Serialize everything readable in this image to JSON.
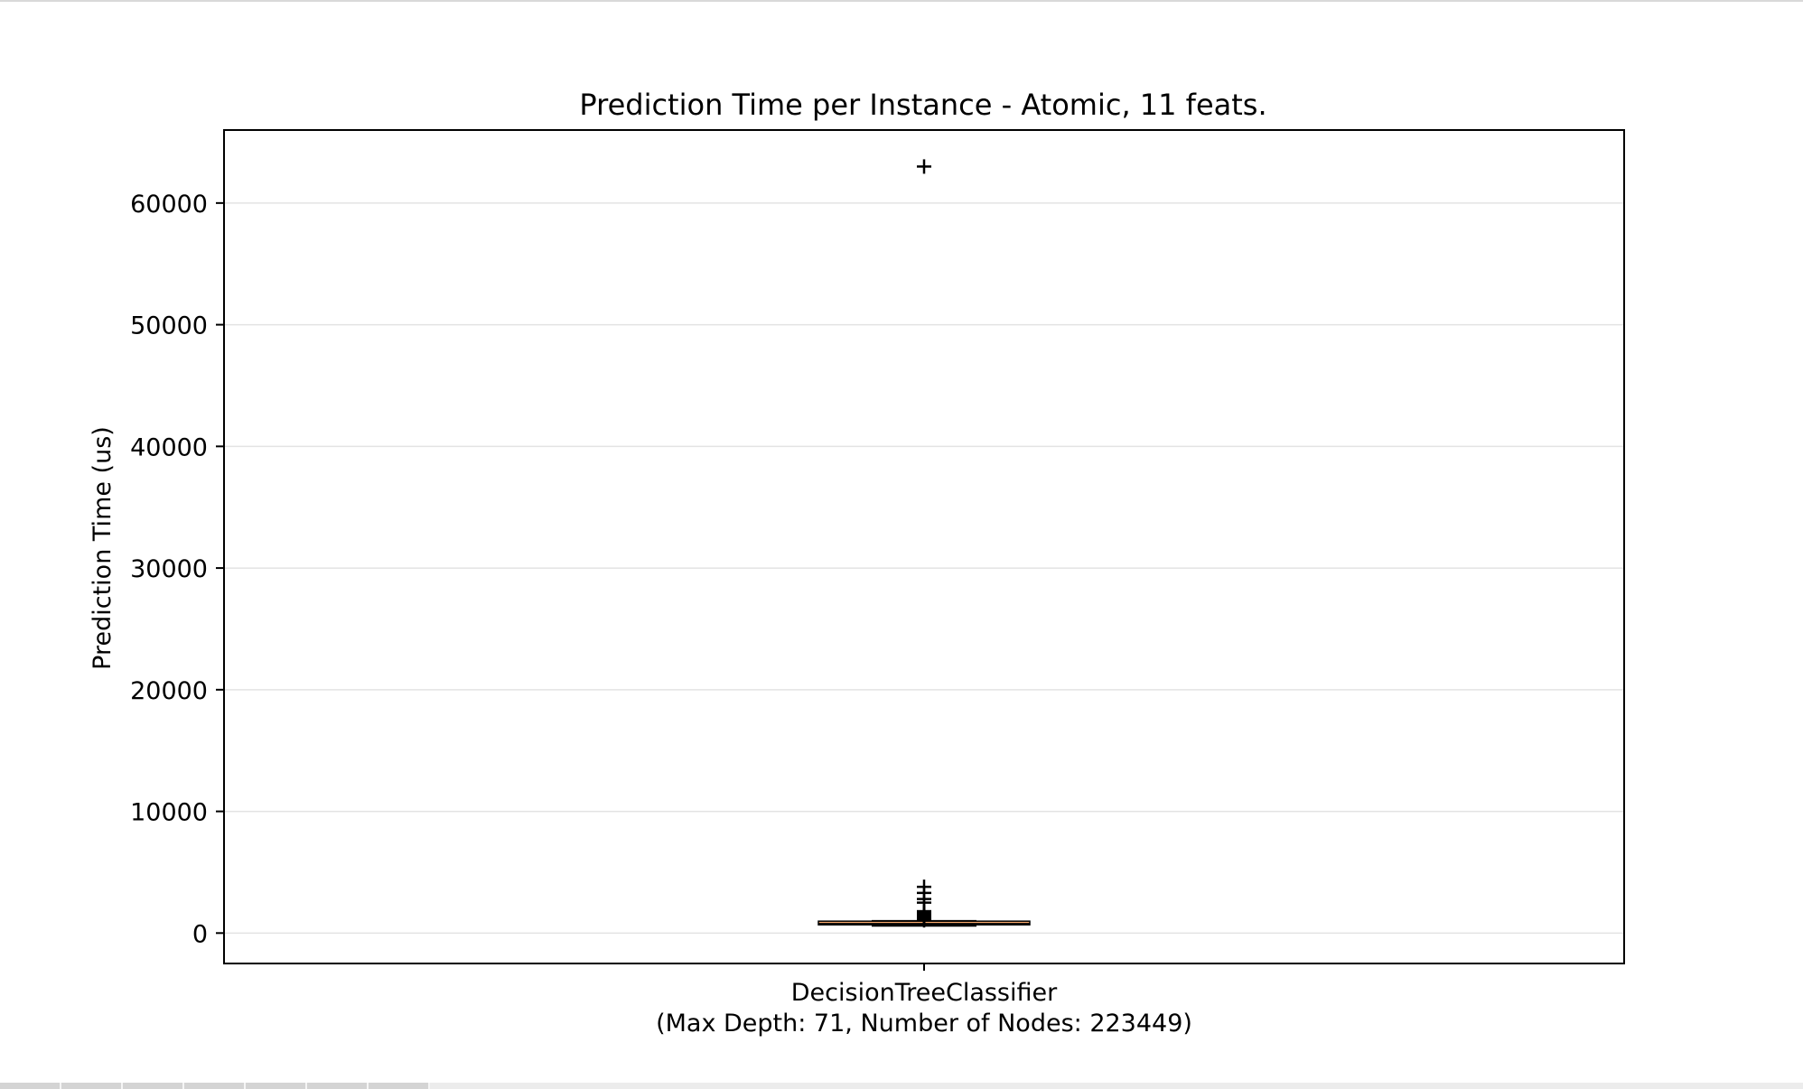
{
  "chart_data": {
    "type": "box",
    "title": "Prediction Time per Instance - Atomic, 11 feats.",
    "ylabel": "Prediction Time (us)",
    "xlabel": "",
    "ylim": [
      -2500,
      66000
    ],
    "yticks": [
      0,
      10000,
      20000,
      30000,
      40000,
      50000,
      60000
    ],
    "ytick_labels": [
      "0",
      "10000",
      "20000",
      "30000",
      "40000",
      "50000",
      "60000"
    ],
    "grid": "y",
    "categories": [
      "DecisionTreeClassifier\n(Max Depth: 71, Number of Nodes: 223449)"
    ],
    "category_lines": [
      "DecisionTreeClassifier",
      "(Max Depth: 71, Number of Nodes: 223449)"
    ],
    "boxes": [
      {
        "name": "DecisionTreeClassifier",
        "whisker_low": 600,
        "q1": 680,
        "median": 760,
        "q3": 880,
        "whisker_high": 1000,
        "outliers": [
          1050,
          1100,
          1150,
          1200,
          1250,
          1300,
          1350,
          1400,
          1450,
          1500,
          1550,
          1600,
          1650,
          1700,
          1800,
          2500,
          2800,
          3300,
          3800,
          63000
        ]
      }
    ],
    "colors": {
      "box_fill": "#f4a66a",
      "box_edge": "#000000",
      "median": "#000000",
      "grid": "#e3e3e3",
      "axes": "#000000"
    }
  }
}
